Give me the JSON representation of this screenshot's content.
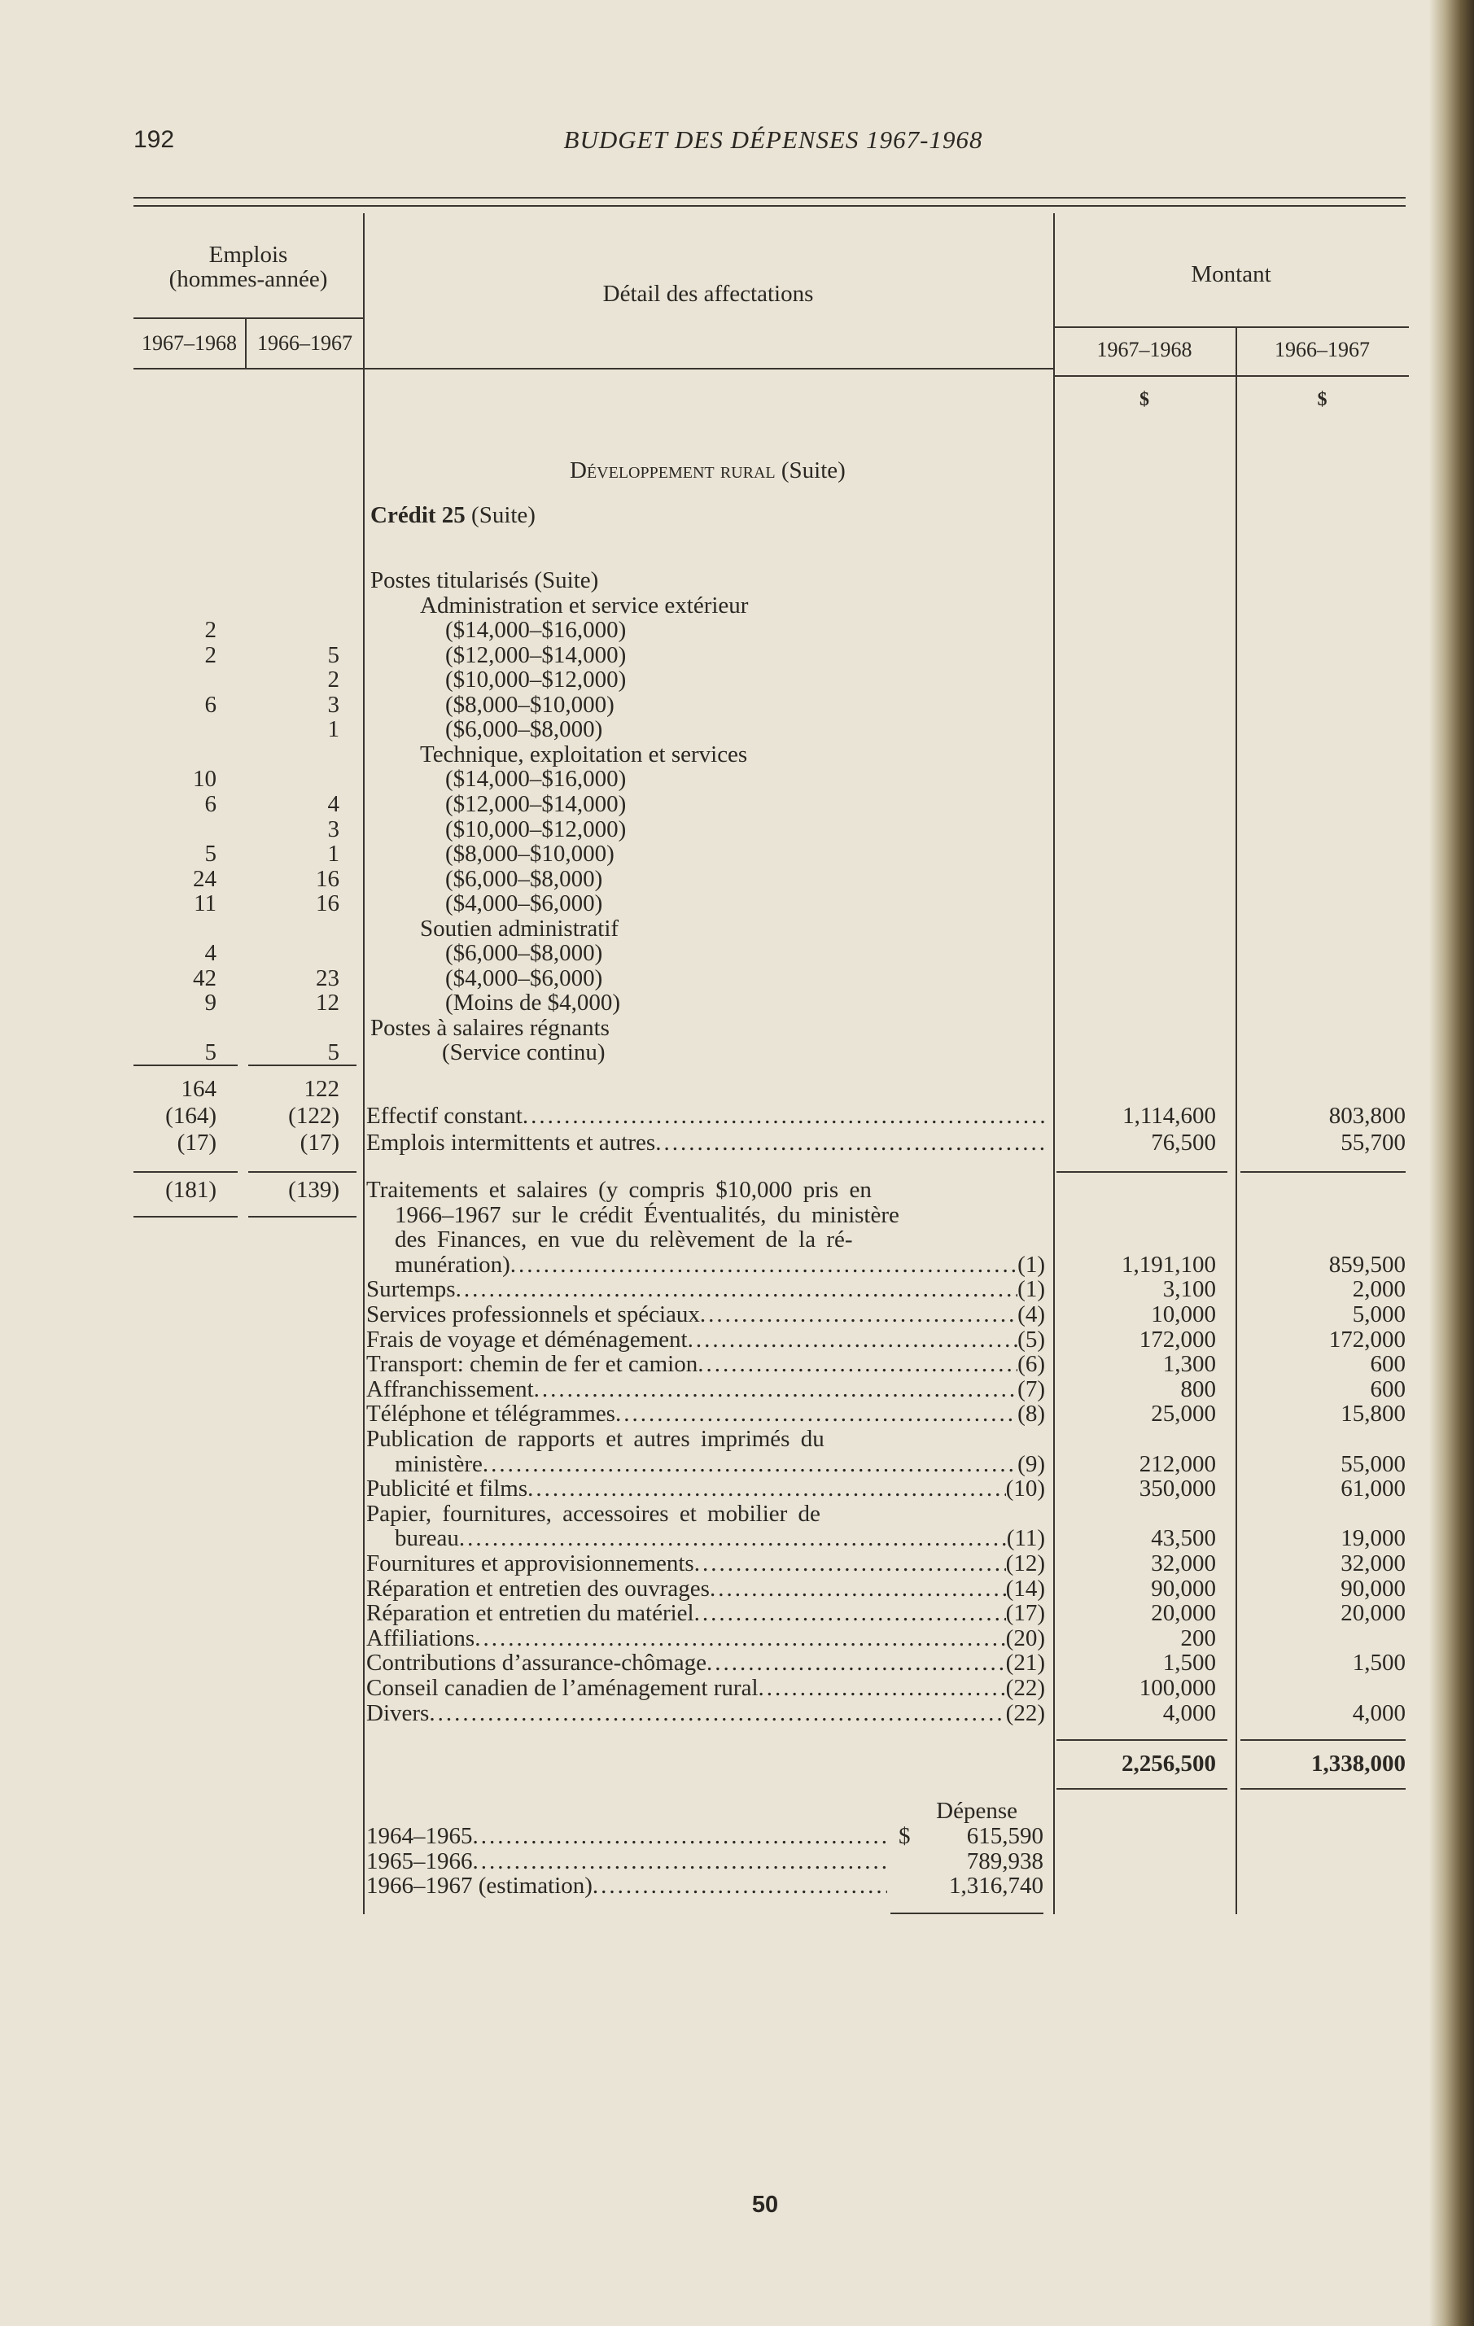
{
  "page_number": "192",
  "running_title": "BUDGET DES DÉPENSES 1967-1968",
  "footer_number": "50",
  "header": {
    "emplois": "Emplois",
    "emplois_sub": "(hommes-année)",
    "year_1": "1967–1968",
    "year_2": "1966–1967",
    "detail": "Détail des affectations",
    "montant": "Montant",
    "m_year_1": "1967–1968",
    "m_year_2": "1966–1967",
    "currency_1": "$",
    "currency_2": "$"
  },
  "section_title": "Développement rural",
  "section_suffix": "(Suite)",
  "credit_title": "Crédit 25",
  "credit_suffix": "(Suite)",
  "positions": [
    {
      "label": "Postes titularisés (Suite)",
      "e1": "",
      "e2": ""
    },
    {
      "label": "Administration et service extérieur",
      "e1": "",
      "e2": ""
    },
    {
      "label": "($14,000–$16,000)",
      "e1": "2",
      "e2": ""
    },
    {
      "label": "($12,000–$14,000)",
      "e1": "2",
      "e2": "5"
    },
    {
      "label": "($10,000–$12,000)",
      "e1": "",
      "e2": "2"
    },
    {
      "label": "($8,000–$10,000)",
      "e1": "6",
      "e2": "3"
    },
    {
      "label": "($6,000–$8,000)",
      "e1": "",
      "e2": "1"
    },
    {
      "label": "Technique, exploitation et services",
      "e1": "",
      "e2": ""
    },
    {
      "label": "($14,000–$16,000)",
      "e1": "10",
      "e2": ""
    },
    {
      "label": "($12,000–$14,000)",
      "e1": "6",
      "e2": "4"
    },
    {
      "label": "($10,000–$12,000)",
      "e1": "",
      "e2": "3"
    },
    {
      "label": "($8,000–$10,000)",
      "e1": "5",
      "e2": "1"
    },
    {
      "label": "($6,000–$8,000)",
      "e1": "24",
      "e2": "16"
    },
    {
      "label": "($4,000–$6,000)",
      "e1": "11",
      "e2": "16"
    },
    {
      "label": "Soutien administratif",
      "e1": "",
      "e2": ""
    },
    {
      "label": "($6,000–$8,000)",
      "e1": "4",
      "e2": ""
    },
    {
      "label": "($4,000–$6,000)",
      "e1": "42",
      "e2": "23"
    },
    {
      "label": "(Moins de $4,000)",
      "e1": "9",
      "e2": "12"
    },
    {
      "label": "Postes à salaires régnants",
      "e1": "",
      "e2": ""
    },
    {
      "label": "(Service continu)",
      "e1": "5",
      "e2": "5"
    }
  ],
  "subtotal": {
    "e1": "164",
    "e2": "122"
  },
  "staff_rows": [
    {
      "label": "Effectif constant",
      "e1": "(164)",
      "e2": "(122)",
      "m1": "1,114,600",
      "m2": "803,800"
    },
    {
      "label": "Emplois intermittents et autres",
      "e1": "(17)",
      "e2": "(17)",
      "m1": "76,500",
      "m2": "55,700"
    }
  ],
  "total_employment": {
    "e1": "(181)",
    "e2": "(139)"
  },
  "expenses": [
    {
      "lines": [
        "Traitements et salaires (y compris $10,000 pris en",
        "1966–1967 sur le crédit Éventualités, du ministère",
        "des Finances, en vue du relèvement de la ré-",
        "munération)"
      ],
      "ref": "(1)",
      "m1": "1,191,100",
      "m2": "859,500"
    },
    {
      "lines": [
        "Surtemps"
      ],
      "ref": "(1)",
      "m1": "3,100",
      "m2": "2,000"
    },
    {
      "lines": [
        "Services professionnels et spéciaux"
      ],
      "ref": "(4)",
      "m1": "10,000",
      "m2": "5,000"
    },
    {
      "lines": [
        "Frais de voyage et déménagement"
      ],
      "ref": "(5)",
      "m1": "172,000",
      "m2": "172,000"
    },
    {
      "lines": [
        "Transport: chemin de fer et camion"
      ],
      "ref": "(6)",
      "m1": "1,300",
      "m2": "600"
    },
    {
      "lines": [
        "Affranchissement"
      ],
      "ref": "(7)",
      "m1": "800",
      "m2": "600"
    },
    {
      "lines": [
        "Téléphone et télégrammes"
      ],
      "ref": "(8)",
      "m1": "25,000",
      "m2": "15,800"
    },
    {
      "lines": [
        "Publication de rapports et autres imprimés du",
        "ministère"
      ],
      "ref": "(9)",
      "m1": "212,000",
      "m2": "55,000"
    },
    {
      "lines": [
        "Publicité et films"
      ],
      "ref": "(10)",
      "m1": "350,000",
      "m2": "61,000"
    },
    {
      "lines": [
        "Papier, fournitures, accessoires et mobilier de",
        "bureau"
      ],
      "ref": "(11)",
      "m1": "43,500",
      "m2": "19,000"
    },
    {
      "lines": [
        "Fournitures et approvisionnements"
      ],
      "ref": "(12)",
      "m1": "32,000",
      "m2": "32,000"
    },
    {
      "lines": [
        "Réparation et entretien des ouvrages"
      ],
      "ref": "(14)",
      "m1": "90,000",
      "m2": "90,000"
    },
    {
      "lines": [
        "Réparation et entretien du matériel"
      ],
      "ref": "(17)",
      "m1": "20,000",
      "m2": "20,000"
    },
    {
      "lines": [
        "Affiliations"
      ],
      "ref": "(20)",
      "m1": "200",
      "m2": ""
    },
    {
      "lines": [
        "Contributions d’assurance-chômage"
      ],
      "ref": "(21)",
      "m1": "1,500",
      "m2": "1,500"
    },
    {
      "lines": [
        "Conseil canadien de l’aménagement rural"
      ],
      "ref": "(22)",
      "m1": "100,000",
      "m2": ""
    },
    {
      "lines": [
        "Divers"
      ],
      "ref": "(22)",
      "m1": "4,000",
      "m2": "4,000"
    }
  ],
  "total": {
    "m1": "2,256,500",
    "m2": "1,338,000"
  },
  "depense": {
    "title": "Dépense",
    "currency": "$",
    "rows": [
      {
        "label": "1964–1965",
        "value": "615,590"
      },
      {
        "label": "1965–1966",
        "value": "789,938"
      },
      {
        "label": "1966–1967 (estimation)",
        "value": "1,316,740"
      }
    ]
  }
}
